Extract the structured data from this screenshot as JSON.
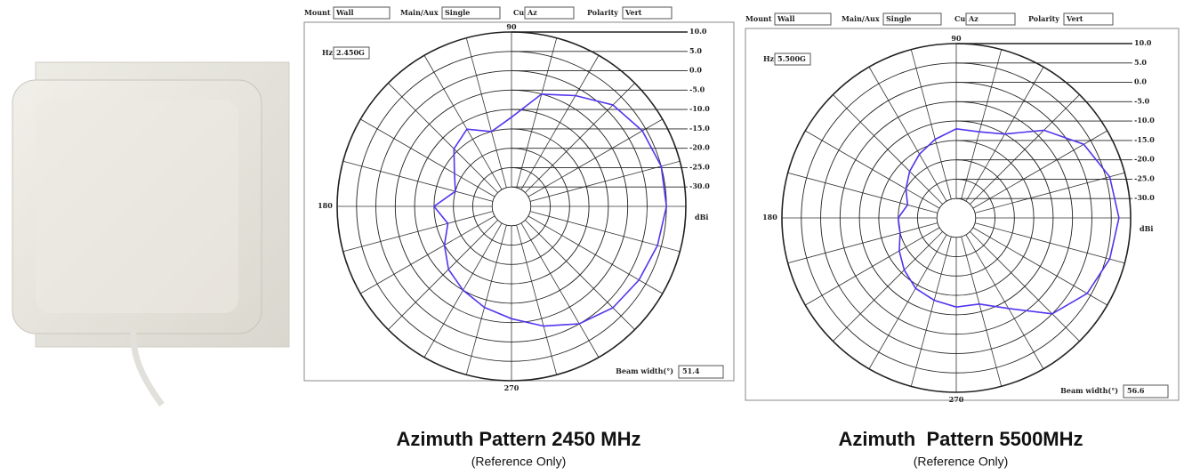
{
  "chart_data": [
    {
      "type": "polar",
      "title": "Azimuth Pattern 2450 MHz",
      "subtitle": "(Reference Only)",
      "fields": [
        {
          "label": "Mount",
          "value": "Wall"
        },
        {
          "label": "Main/Aux",
          "value": "Single"
        },
        {
          "label": "Cut",
          "value": "Az"
        },
        {
          "label": "Polarity",
          "value": "Vert"
        }
      ],
      "frequency_label": "Hz",
      "frequency": "2.450G",
      "beam_width_label": "Beam width(°)",
      "beam_width": 51.4,
      "r_unit": "dBi",
      "rlim": [
        -35,
        10
      ],
      "rticks": [
        {
          "value": 10,
          "label": "10.0"
        },
        {
          "value": 5,
          "label": "5.0"
        },
        {
          "value": 0,
          "label": "0.0"
        },
        {
          "value": -5,
          "label": "-5.0"
        },
        {
          "value": -10,
          "label": "-10.0"
        },
        {
          "value": -15,
          "label": "-15.0"
        },
        {
          "value": -20,
          "label": "-20.0"
        },
        {
          "value": -25,
          "label": "-25.0"
        },
        {
          "value": -30,
          "label": "-30.0"
        }
      ],
      "thetaticks": [
        90,
        180,
        270
      ],
      "series": [
        {
          "color": "#5533ee",
          "theta": [
            0,
            15,
            30,
            45,
            60,
            75,
            90,
            105,
            120,
            135,
            150,
            165,
            180,
            195,
            210,
            225,
            240,
            255,
            270,
            285,
            300,
            315,
            330,
            345,
            360
          ],
          "values": [
            5,
            5,
            4,
            2,
            -2,
            -5,
            -12,
            -15,
            -12,
            -14,
            -18,
            -20,
            -15,
            -18,
            -15,
            -12,
            -10,
            -8,
            -6,
            -3,
            0,
            2,
            3,
            4,
            5
          ]
        }
      ]
    },
    {
      "type": "polar",
      "title": "Azimuth  Pattern 5500MHz",
      "subtitle": "(Reference Only)",
      "fields": [
        {
          "label": "Mount",
          "value": "Wall"
        },
        {
          "label": "Main/Aux",
          "value": "Single"
        },
        {
          "label": "Cut",
          "value": "Az"
        },
        {
          "label": "Polarity",
          "value": "Vert"
        }
      ],
      "frequency_label": "Hz",
      "frequency": "5.500G",
      "beam_width_label": "Beam width(°)",
      "beam_width": 56.6,
      "r_unit": "dBi",
      "rlim": [
        -35,
        10
      ],
      "rticks": [
        {
          "value": 10,
          "label": "10.0"
        },
        {
          "value": 5,
          "label": "5.0"
        },
        {
          "value": 0,
          "label": "0.0"
        },
        {
          "value": -5,
          "label": "-5.0"
        },
        {
          "value": -10,
          "label": "-10.0"
        },
        {
          "value": -15,
          "label": "-15.0"
        },
        {
          "value": -20,
          "label": "-20.0"
        },
        {
          "value": -25,
          "label": "-25.0"
        },
        {
          "value": -30,
          "label": "-30.0"
        }
      ],
      "thetaticks": [
        90,
        180,
        270
      ],
      "series": [
        {
          "color": "#5533ee",
          "theta": [
            0,
            15,
            30,
            45,
            60,
            75,
            90,
            105,
            120,
            135,
            150,
            165,
            180,
            195,
            210,
            225,
            240,
            255,
            270,
            285,
            300,
            315,
            330,
            345,
            360
          ],
          "values": [
            7,
            6,
            3,
            -3,
            -10,
            -12,
            -12,
            -14,
            -16,
            -18,
            -20,
            -22,
            -20,
            -20,
            -18,
            -16,
            -14,
            -13,
            -12,
            -12,
            -8,
            0,
            4,
            6,
            7
          ]
        }
      ]
    }
  ]
}
